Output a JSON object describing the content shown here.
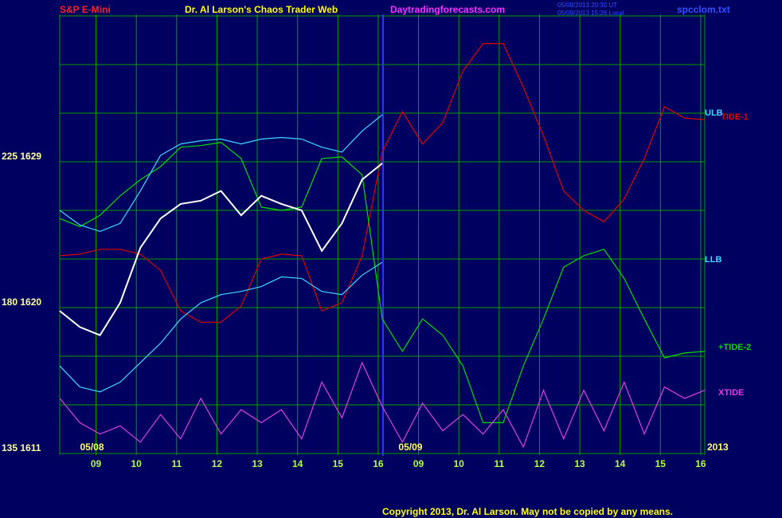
{
  "chart_data": {
    "type": "line",
    "instrument": "S&P E-Mini",
    "title": "Dr. Al Larson's Chaos Trader Web",
    "website": "Daytradingforecasts.com",
    "timestamps": [
      "05/08/2013 20:30 UT",
      "05/09/2013 15:26 Local"
    ],
    "file": "spcclom.txt",
    "copyright": "Copyright 2013, Dr. Al Larson. May not be copied by any means.",
    "date_labels": [
      {
        "value": 0.9,
        "label": "05/08"
      },
      {
        "value": 8.8,
        "label": "05/09"
      }
    ],
    "year_label": "2013",
    "xlim": [
      0.1,
      16.1
    ],
    "xticks": [
      {
        "value": 1,
        "label": "09"
      },
      {
        "value": 2,
        "label": "10"
      },
      {
        "value": 3,
        "label": "11"
      },
      {
        "value": 4,
        "label": "12"
      },
      {
        "value": 5,
        "label": "13"
      },
      {
        "value": 6,
        "label": "14"
      },
      {
        "value": 7,
        "label": "15"
      },
      {
        "value": 8,
        "label": "16"
      },
      {
        "value": 9,
        "label": "09"
      },
      {
        "value": 10,
        "label": "10"
      },
      {
        "value": 11,
        "label": "11"
      },
      {
        "value": 12,
        "label": "12"
      },
      {
        "value": 13,
        "label": "13"
      },
      {
        "value": 14,
        "label": "14"
      },
      {
        "value": 15,
        "label": "15"
      },
      {
        "value": 16,
        "label": "16"
      }
    ],
    "ylim": [
      1611,
      1638
    ],
    "yticks": [
      {
        "value": 1611,
        "label": "135  1611"
      },
      {
        "value": 1620,
        "label": "180  1620"
      },
      {
        "value": 1629,
        "label": "225  1629"
      }
    ],
    "ygrid": [
      1611,
      1614,
      1617,
      1620,
      1623,
      1626,
      1629,
      1632,
      1635,
      1638
    ],
    "grid": true,
    "x": [
      0.1,
      0.6,
      1.1,
      1.6,
      2.1,
      2.6,
      3.1,
      3.6,
      4.1,
      4.6,
      5.1,
      5.6,
      6.1,
      6.6,
      7.1,
      7.6,
      8.1,
      8.6,
      9.1,
      9.6,
      10.1,
      10.6,
      11.1,
      11.6,
      12.1,
      12.6,
      13.1,
      13.6,
      14.1,
      14.6,
      15.1,
      15.6,
      16.1
    ],
    "series": [
      {
        "name": "TIDE-1",
        "color": "#e00000",
        "values": [
          1623.2,
          1623.3,
          1623.6,
          1623.6,
          1623.3,
          1622.3,
          1619.8,
          1619.1,
          1619.1,
          1620.1,
          1623.0,
          1623.3,
          1623.2,
          1619.8,
          1620.3,
          1623.2,
          1629.6,
          1632.1,
          1630.1,
          1631.4,
          1634.6,
          1636.3,
          1636.3,
          1633.6,
          1630.6,
          1627.2,
          1626.0,
          1625.3,
          1626.7,
          1629.2,
          1632.4,
          1631.7,
          1631.6
        ]
      },
      {
        "name": "+TIDE-2",
        "color": "#00dd00",
        "values": [
          1625.5,
          1625.0,
          1625.7,
          1626.9,
          1627.9,
          1628.7,
          1629.9,
          1630.0,
          1630.2,
          1629.2,
          1626.2,
          1626.0,
          1626.2,
          1629.2,
          1629.3,
          1628.2,
          1619.3,
          1617.3,
          1619.3,
          1618.3,
          1616.4,
          1612.9,
          1612.9,
          1616.4,
          1619.3,
          1622.5,
          1623.2,
          1623.6,
          1621.8,
          1619.3,
          1616.9,
          1617.2,
          1617.3
        ]
      },
      {
        "name": "XTIDE",
        "color": "#e040e0",
        "values": [
          1614.4,
          1612.9,
          1612.2,
          1612.7,
          1611.7,
          1613.4,
          1611.9,
          1614.4,
          1612.2,
          1613.7,
          1612.9,
          1613.7,
          1611.9,
          1615.4,
          1613.2,
          1616.6,
          1613.9,
          1611.7,
          1614.1,
          1612.4,
          1613.4,
          1612.2,
          1613.7,
          1611.4,
          1614.9,
          1611.9,
          1614.9,
          1612.4,
          1615.4,
          1612.2,
          1615.1,
          1614.4,
          1614.9
        ]
      },
      {
        "name": "ULB",
        "color": "#40d8ff",
        "values": [
          1626.0,
          1625.1,
          1624.7,
          1625.2,
          1627.2,
          1629.4,
          1630.1,
          1630.3,
          1630.4,
          1630.1,
          1630.4,
          1630.5,
          1630.4,
          1629.9,
          1629.6,
          1630.9,
          1631.9,
          null,
          null,
          null,
          null,
          null,
          null,
          null,
          null,
          null,
          null,
          null,
          null,
          null,
          null,
          null,
          null
        ]
      },
      {
        "name": "LLB",
        "color": "#40d8ff",
        "values": [
          1616.4,
          1615.1,
          1614.8,
          1615.4,
          1616.6,
          1617.8,
          1619.3,
          1620.3,
          1620.8,
          1621.0,
          1621.3,
          1621.9,
          1621.8,
          1621.0,
          1620.8,
          1622.0,
          1622.8,
          null,
          null,
          null,
          null,
          null,
          null,
          null,
          null,
          null,
          null,
          null,
          null,
          null,
          null,
          null,
          null
        ]
      },
      {
        "color": "#ffffff",
        "values": [
          1619.8,
          1618.8,
          1618.3,
          1620.3,
          1623.7,
          1625.5,
          1626.4,
          1626.6,
          1627.2,
          1625.7,
          1626.9,
          1626.4,
          1626.0,
          1623.5,
          1625.2,
          1627.9,
          1628.9,
          null,
          null,
          null,
          null,
          null,
          null,
          null,
          null,
          null,
          null,
          null,
          null,
          null,
          null,
          null,
          null
        ]
      }
    ]
  }
}
